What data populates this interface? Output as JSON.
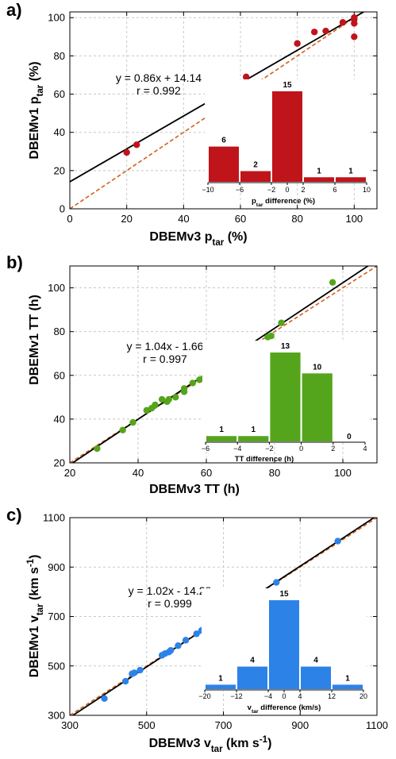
{
  "chart_data": [
    {
      "panel": "a)",
      "type": "scatter",
      "xlabel_pre": "DBEMv3 p",
      "xlabel_sub": "tar",
      "xlabel_post": " (%)",
      "ylabel_pre": "DBEMv1 p",
      "ylabel_sub": "tar",
      "ylabel_post": " (%)",
      "xlim": [
        0,
        108
      ],
      "ylim": [
        0,
        103
      ],
      "xticks": [
        0,
        20,
        40,
        60,
        80,
        100
      ],
      "yticks": [
        0,
        20,
        40,
        60,
        80,
        100
      ],
      "color": "#c0141b",
      "points": [
        [
          20,
          29.5
        ],
        [
          23.5,
          33.5
        ],
        [
          51,
          59
        ],
        [
          62,
          69
        ],
        [
          80,
          86.5
        ],
        [
          86,
          92.5
        ],
        [
          90,
          93
        ],
        [
          96,
          97.5
        ],
        [
          100,
          100
        ],
        [
          100,
          99
        ],
        [
          100,
          97
        ],
        [
          100,
          90
        ]
      ],
      "fit_label": "y = 0.86x + 14.14",
      "r_label": "r = 0.992",
      "slope": 0.86,
      "intercept": 14.14,
      "inset": {
        "type": "bar",
        "xlabel_pre": "p",
        "xlabel_sub": "tar",
        "xlabel_post": " difference (%)",
        "bin_edges": [
          -10,
          -6,
          -2,
          2,
          6,
          10
        ],
        "counts": [
          6,
          2,
          15,
          1,
          1
        ],
        "xticks": [
          "−10",
          "−6",
          "−2",
          "0",
          "2",
          "6",
          "10"
        ],
        "xtick_vals": [
          -10,
          -6,
          -2,
          0,
          2,
          6,
          10
        ],
        "ymax": 15
      }
    },
    {
      "panel": "b)",
      "type": "scatter",
      "xlabel_pre": "DBEMv3 TT (h)",
      "xlabel_sub": "",
      "xlabel_post": "",
      "ylabel_pre": "DBEMv1 TT (h)",
      "ylabel_sub": "",
      "ylabel_post": "",
      "xlim": [
        20,
        110
      ],
      "ylim": [
        20,
        110
      ],
      "xticks": [
        20,
        40,
        60,
        80,
        100
      ],
      "yticks": [
        20,
        40,
        60,
        80,
        100
      ],
      "color": "#55a51c",
      "points": [
        [
          28,
          26.5
        ],
        [
          35.5,
          35
        ],
        [
          38.5,
          38.5
        ],
        [
          42.5,
          44
        ],
        [
          44,
          45
        ],
        [
          45,
          46.5
        ],
        [
          47,
          49
        ],
        [
          48.5,
          48
        ],
        [
          49,
          49
        ],
        [
          51,
          50
        ],
        [
          53.5,
          52.5
        ],
        [
          53.5,
          54
        ],
        [
          56,
          56.5
        ],
        [
          58,
          58
        ],
        [
          59,
          58.5
        ],
        [
          60,
          59.5
        ],
        [
          60.5,
          60.5
        ],
        [
          63.5,
          63
        ],
        [
          73.5,
          74
        ],
        [
          78,
          77.5
        ],
        [
          79,
          78
        ],
        [
          82,
          84
        ],
        [
          97,
          102.5
        ]
      ],
      "fit_label": "y = 1.04x - 1.66",
      "r_label": "r = 0.997",
      "slope": 1.04,
      "intercept": -1.66,
      "inset": {
        "type": "bar",
        "xlabel_pre": "TT difference (h)",
        "xlabel_sub": "",
        "xlabel_post": "",
        "bin_edges": [
          -6,
          -4,
          -2,
          0,
          2,
          4
        ],
        "counts": [
          1,
          1,
          13,
          10,
          0
        ],
        "xticks": [
          "−6",
          "−4",
          "−2",
          "0",
          "2",
          "4"
        ],
        "xtick_vals": [
          -6,
          -4,
          -2,
          0,
          2,
          4
        ],
        "ymax": 13
      }
    },
    {
      "panel": "c)",
      "type": "scatter",
      "xlabel_pre": "DBEMv3 v",
      "xlabel_sub": "tar",
      "xlabel_post": " (km s",
      "ylabel_pre": "DBEMv1 v",
      "ylabel_sub": "tar",
      "ylabel_post": " (km s",
      "unit_sup": "-1",
      "unit_close": ")",
      "xlim": [
        300,
        1100
      ],
      "ylim": [
        300,
        1100
      ],
      "xticks": [
        300,
        500,
        700,
        900,
        1100
      ],
      "yticks": [
        300,
        500,
        700,
        900,
        1100
      ],
      "color": "#2d82e8",
      "points": [
        [
          390,
          368
        ],
        [
          445,
          438
        ],
        [
          462,
          468
        ],
        [
          468,
          472
        ],
        [
          483,
          483
        ],
        [
          540,
          543
        ],
        [
          548,
          550
        ],
        [
          558,
          556
        ],
        [
          563,
          563
        ],
        [
          582,
          582
        ],
        [
          602,
          604
        ],
        [
          630,
          630
        ],
        [
          643,
          643
        ],
        [
          648,
          648
        ],
        [
          662,
          656
        ],
        [
          688,
          678
        ],
        [
          692,
          688
        ],
        [
          708,
          704
        ],
        [
          760,
          763
        ],
        [
          770,
          775
        ],
        [
          838,
          838
        ],
        [
          998,
          1005
        ]
      ],
      "fit_label": "y = 1.02x - 14.28",
      "r_label": "r = 0.999",
      "slope": 1.02,
      "intercept": -14.28,
      "inset": {
        "type": "bar",
        "xlabel_pre": "v",
        "xlabel_sub": "tar",
        "xlabel_post": " difference (km/s)",
        "bin_edges": [
          -20,
          -12,
          -4,
          4,
          12,
          20
        ],
        "counts": [
          1,
          4,
          15,
          4,
          1
        ],
        "xticks": [
          "−20",
          "−12",
          "−4",
          "0",
          "4",
          "12",
          "20"
        ],
        "xtick_vals": [
          -20,
          -12,
          -4,
          0,
          4,
          12,
          20
        ],
        "ymax": 15
      }
    }
  ]
}
